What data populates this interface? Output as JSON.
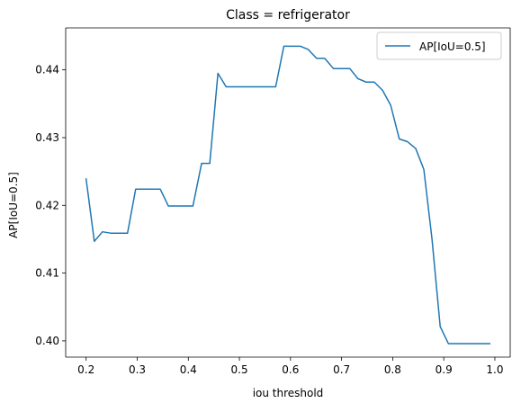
{
  "chart_data": {
    "type": "line",
    "title": "Class = refrigerator",
    "xlabel": "iou threshold",
    "ylabel": "AP[IoU=0.5]",
    "xlim": [
      0.16,
      1.03
    ],
    "ylim": [
      0.3976,
      0.4462
    ],
    "xticks": [
      0.2,
      0.3,
      0.4,
      0.5,
      0.6,
      0.7,
      0.8,
      0.9,
      1.0
    ],
    "xtick_labels": [
      "0.2",
      "0.3",
      "0.4",
      "0.5",
      "0.6",
      "0.7",
      "0.8",
      "0.9",
      "1.0"
    ],
    "yticks": [
      0.4,
      0.41,
      0.42,
      0.43,
      0.44
    ],
    "ytick_labels": [
      "0.40",
      "0.41",
      "0.42",
      "0.43",
      "0.44"
    ],
    "grid": false,
    "legend_position": "top-right",
    "series": [
      {
        "name": "AP[IoU=0.5]",
        "color": "#1f77b4",
        "x": [
          0.2,
          0.216,
          0.232,
          0.248,
          0.264,
          0.281,
          0.297,
          0.313,
          0.329,
          0.345,
          0.361,
          0.377,
          0.393,
          0.409,
          0.426,
          0.442,
          0.458,
          0.474,
          0.49,
          0.506,
          0.522,
          0.538,
          0.555,
          0.571,
          0.587,
          0.603,
          0.619,
          0.635,
          0.651,
          0.667,
          0.684,
          0.7,
          0.716,
          0.732,
          0.748,
          0.764,
          0.78,
          0.796,
          0.813,
          0.829,
          0.845,
          0.861,
          0.877,
          0.893,
          0.909,
          0.925,
          0.942,
          0.958,
          0.974,
          0.99
        ],
        "y": [
          0.4239,
          0.4147,
          0.4161,
          0.4159,
          0.4159,
          0.4159,
          0.4224,
          0.4224,
          0.4224,
          0.4224,
          0.4199,
          0.4199,
          0.4199,
          0.4199,
          0.4262,
          0.4262,
          0.4395,
          0.4375,
          0.4375,
          0.4375,
          0.4375,
          0.4375,
          0.4375,
          0.4375,
          0.4435,
          0.4435,
          0.4435,
          0.443,
          0.4417,
          0.4417,
          0.4402,
          0.4402,
          0.4402,
          0.4387,
          0.4382,
          0.4382,
          0.437,
          0.4348,
          0.4298,
          0.4294,
          0.4284,
          0.4253,
          0.415,
          0.4021,
          0.3996,
          0.3996,
          0.3996,
          0.3996,
          0.3996,
          0.3996
        ]
      }
    ]
  }
}
